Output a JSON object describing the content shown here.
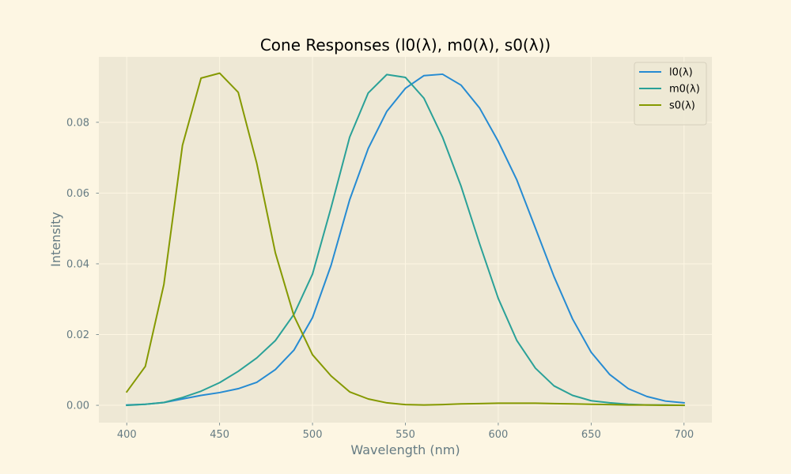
{
  "colors": {
    "figure_background": "#fdf6e3",
    "plot_background": "#eee8d5",
    "grid": "#fdf6e3",
    "axis_text": "#657b83",
    "title_text": "#000000",
    "legend_text": "#000000",
    "legend_border": "#d6d0bd"
  },
  "chart_data": {
    "type": "line",
    "title": "Cone Responses (l0(λ), m0(λ), s0(λ))",
    "xlabel": "Wavelength (nm)",
    "ylabel": "Intensity",
    "xlim": [
      385,
      715
    ],
    "ylim": [
      -0.0049,
      0.0985
    ],
    "xticks": [
      400,
      450,
      500,
      550,
      600,
      650,
      700
    ],
    "xtick_labels": [
      "400",
      "450",
      "500",
      "550",
      "600",
      "650",
      "700"
    ],
    "yticks": [
      0,
      0.02,
      0.04,
      0.06,
      0.08
    ],
    "ytick_labels": [
      "0.00",
      "0.02",
      "0.04",
      "0.06",
      "0.08"
    ],
    "grid": true,
    "legend_position": "top-right",
    "x": [
      400,
      410,
      420,
      430,
      440,
      450,
      460,
      470,
      480,
      490,
      500,
      510,
      520,
      530,
      540,
      550,
      560,
      570,
      580,
      590,
      600,
      610,
      620,
      630,
      640,
      650,
      660,
      670,
      680,
      690,
      700
    ],
    "series": [
      {
        "name": "l0(λ)",
        "color": "#268bd2",
        "values": [
          0.0001,
          0.0003,
          0.0008,
          0.0018,
          0.0028,
          0.0036,
          0.0047,
          0.0065,
          0.0101,
          0.0156,
          0.0248,
          0.0396,
          0.0581,
          0.0726,
          0.0831,
          0.0896,
          0.0932,
          0.0936,
          0.0905,
          0.084,
          0.0746,
          0.0637,
          0.0501,
          0.0364,
          0.0244,
          0.015,
          0.0087,
          0.0047,
          0.0025,
          0.0012,
          0.0007
        ]
      },
      {
        "name": "m0(λ)",
        "color": "#2aa198",
        "values": [
          0.0,
          0.0003,
          0.0008,
          0.0022,
          0.004,
          0.0064,
          0.0096,
          0.0134,
          0.0183,
          0.0257,
          0.0371,
          0.0559,
          0.0758,
          0.0883,
          0.0935,
          0.0927,
          0.0868,
          0.0758,
          0.0619,
          0.0456,
          0.0302,
          0.0183,
          0.0105,
          0.0055,
          0.0028,
          0.0013,
          0.0007,
          0.0003,
          0.0001,
          0.0001,
          0.0
        ]
      },
      {
        "name": "s0(λ)",
        "color": "#859900",
        "values": [
          0.0038,
          0.011,
          0.0342,
          0.0735,
          0.0925,
          0.0939,
          0.0885,
          0.0684,
          0.0431,
          0.0253,
          0.0143,
          0.0083,
          0.0038,
          0.0018,
          0.0007,
          0.0002,
          0.0001,
          0.0002,
          0.0004,
          0.0005,
          0.0006,
          0.0006,
          0.0006,
          0.0005,
          0.0004,
          0.0003,
          0.0002,
          0.0001,
          0.0001,
          0.0,
          0.0
        ]
      }
    ]
  }
}
